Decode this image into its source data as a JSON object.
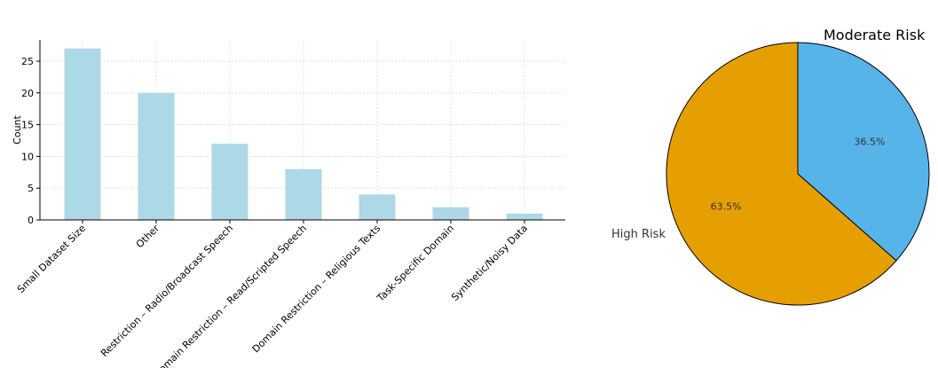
{
  "chart_data": [
    {
      "type": "bar",
      "categories": [
        "Small Dataset Size",
        "Other",
        "Restriction – Radio/Broadcast Speech",
        "Domain Restriction – Read/Scripted Speech",
        "Domain Restriction – Religious Texts",
        "Task-Specific Domain",
        "Synthetic/Noisy Data"
      ],
      "values": [
        27,
        20,
        12,
        8,
        4,
        2,
        1
      ],
      "ylabel": "Count",
      "xlabel": "",
      "yticks": [
        0,
        5,
        10,
        15,
        20,
        25
      ],
      "ylim": [
        0,
        28.35
      ],
      "grid": true,
      "bar_color": "#add8e6"
    },
    {
      "type": "pie",
      "labels": [
        "Moderate Risk",
        "High Risk"
      ],
      "values": [
        36.5,
        63.5
      ],
      "value_labels": [
        "36.5%",
        "63.5%"
      ],
      "colors": [
        "#56b4e9",
        "#e69f00"
      ]
    }
  ]
}
